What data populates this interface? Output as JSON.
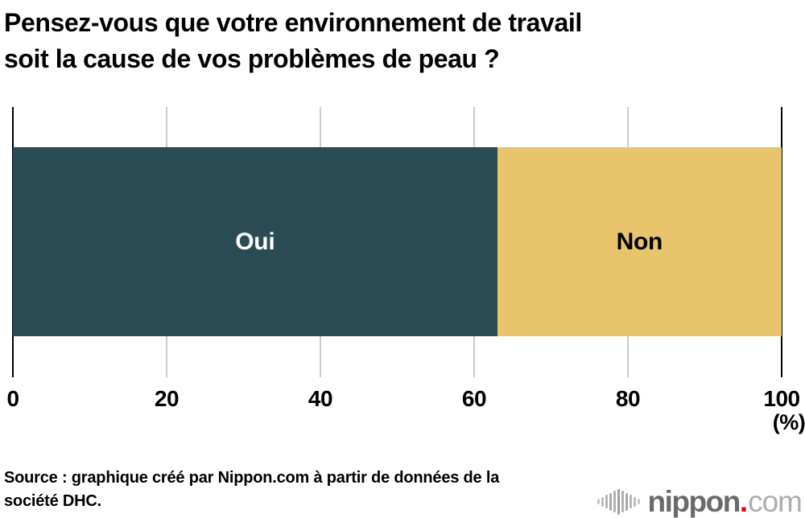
{
  "title": {
    "lines": [
      "Pensez-vous que votre environnement de travail",
      "soit la cause de vos problèmes de peau ?"
    ]
  },
  "chart_data": {
    "type": "bar",
    "orientation": "horizontal_stacked",
    "title": "Pensez-vous que votre environnement de travail soit la cause de vos problèmes de peau ?",
    "categories": [
      "Oui",
      "Non"
    ],
    "values": [
      63,
      37
    ],
    "unit": "%",
    "xlim": [
      0,
      100
    ],
    "x_ticks": [
      0,
      20,
      40,
      60,
      80,
      100
    ],
    "axis_unit_label": "(%)",
    "segment_colors": [
      "#2a4a54",
      "#e8c56c"
    ],
    "label_colors": [
      "#ffffff",
      "#000000"
    ],
    "gridline_color": "#cbcbcb",
    "axis_color": "#000000",
    "grid": "vertical",
    "legend": "labels-inside-segments"
  },
  "source": {
    "lines": [
      "Source : graphique créé par Nippon.com à partir de données de la",
      "société DHC."
    ]
  },
  "logo": {
    "name": "nippon.com",
    "icon": "soundwave-bars-icon",
    "text_bold": "nippon",
    "dot": ".",
    "text_light": "com",
    "dot_color": "#e60012"
  }
}
